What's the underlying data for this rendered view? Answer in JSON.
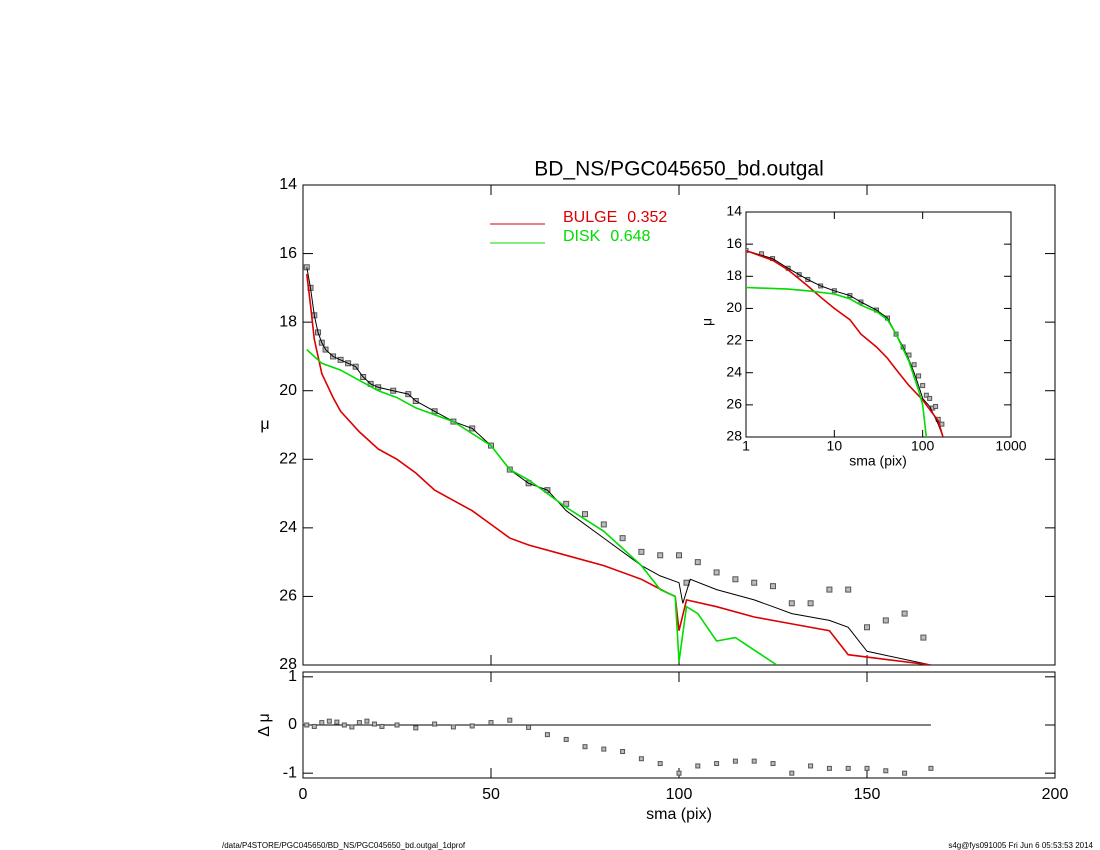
{
  "chart_data": [
    {
      "type": "line",
      "title": "BD_NS/PGC045650_bd.outgal",
      "ylabel": "μ",
      "xlim": [
        0,
        200
      ],
      "xticks": [
        0,
        50,
        100,
        150,
        200
      ],
      "ylim": [
        28,
        14
      ],
      "yticks": [
        14,
        16,
        18,
        20,
        22,
        24,
        26,
        28
      ],
      "series": [
        {
          "style": "markers",
          "color": "#555555",
          "x": [
            1,
            2,
            3,
            4,
            5,
            6,
            8,
            10,
            12,
            14,
            16,
            18,
            20,
            24,
            28,
            30,
            35,
            40,
            45,
            50,
            55,
            60,
            65,
            70,
            75,
            80,
            85,
            90,
            95,
            100,
            102,
            105,
            110,
            115,
            120,
            125,
            130,
            135,
            140,
            145,
            150,
            155,
            160,
            165
          ],
          "values": [
            16.4,
            17.0,
            17.8,
            18.3,
            18.6,
            18.8,
            19.0,
            19.1,
            19.2,
            19.3,
            19.6,
            19.8,
            19.9,
            20.0,
            20.1,
            20.3,
            20.6,
            20.9,
            21.1,
            21.6,
            22.3,
            22.7,
            22.9,
            23.3,
            23.6,
            23.9,
            24.3,
            24.7,
            24.8,
            24.8,
            25.6,
            25.0,
            25.3,
            25.5,
            25.6,
            25.7,
            26.2,
            26.2,
            25.8,
            25.8,
            26.9,
            26.7,
            26.5,
            27.2
          ]
        },
        {
          "style": "line",
          "color": "#000000",
          "x": [
            1,
            2,
            3,
            4,
            5,
            6,
            8,
            10,
            12,
            14,
            16,
            18,
            20,
            24,
            28,
            30,
            35,
            40,
            45,
            50,
            55,
            60,
            65,
            70,
            80,
            90,
            95,
            100,
            101,
            103,
            110,
            120,
            125,
            130,
            135,
            140,
            145,
            150,
            167
          ],
          "values": [
            16.4,
            17.0,
            17.8,
            18.3,
            18.6,
            18.8,
            19.0,
            19.1,
            19.2,
            19.3,
            19.6,
            19.8,
            19.9,
            20.0,
            20.1,
            20.3,
            20.6,
            20.9,
            21.1,
            21.6,
            22.3,
            22.7,
            22.9,
            23.5,
            24.3,
            25.1,
            25.4,
            25.6,
            26.2,
            25.5,
            25.8,
            26.1,
            26.3,
            26.5,
            26.6,
            26.7,
            26.9,
            27.6,
            28.0
          ]
        },
        {
          "style": "line",
          "name": "BULGE",
          "fraction": 0.352,
          "color": "#dd0000",
          "x": [
            1,
            2,
            3,
            5,
            8,
            10,
            15,
            20,
            25,
            30,
            35,
            40,
            45,
            50,
            55,
            60,
            70,
            80,
            90,
            97,
            99,
            100,
            102,
            110,
            120,
            130,
            140,
            145,
            167
          ],
          "values": [
            16.6,
            17.5,
            18.5,
            19.5,
            20.2,
            20.6,
            21.2,
            21.7,
            22.0,
            22.4,
            22.9,
            23.2,
            23.5,
            23.9,
            24.3,
            24.5,
            24.8,
            25.1,
            25.5,
            25.9,
            26.0,
            27.0,
            26.1,
            26.3,
            26.6,
            26.8,
            27.0,
            27.7,
            28.0
          ]
        },
        {
          "style": "line",
          "name": "DISK",
          "fraction": 0.648,
          "color": "#00dd00",
          "x": [
            1,
            5,
            10,
            15,
            20,
            25,
            30,
            40,
            50,
            55,
            60,
            70,
            80,
            85,
            90,
            95,
            99,
            100,
            102,
            105,
            110,
            115,
            126
          ],
          "values": [
            18.8,
            19.2,
            19.4,
            19.7,
            20.0,
            20.2,
            20.5,
            20.9,
            21.6,
            22.3,
            22.6,
            23.4,
            24.1,
            24.6,
            25.1,
            25.8,
            26.0,
            27.9,
            26.3,
            26.5,
            27.3,
            27.2,
            28.0
          ]
        }
      ]
    },
    {
      "type": "scatter",
      "ylabel": "Δ μ",
      "xlabel": "sma (pix)",
      "xlim": [
        0,
        200
      ],
      "xticks": [
        0,
        50,
        100,
        150,
        200
      ],
      "ylim": [
        -1.1,
        1.1
      ],
      "yticks": [
        -1,
        0,
        1
      ],
      "series": [
        {
          "style": "line",
          "color": "#000000",
          "x": [
            0,
            167
          ],
          "values": [
            0,
            0
          ]
        },
        {
          "style": "markers",
          "color": "#555555",
          "x": [
            1,
            3,
            5,
            7,
            9,
            11,
            13,
            15,
            17,
            19,
            21,
            25,
            30,
            35,
            40,
            45,
            50,
            55,
            60,
            65,
            70,
            75,
            80,
            85,
            90,
            95,
            100,
            105,
            110,
            115,
            120,
            125,
            130,
            135,
            140,
            145,
            150,
            155,
            160,
            167
          ],
          "values": [
            0.0,
            -0.03,
            0.05,
            0.08,
            0.06,
            0.0,
            -0.04,
            0.05,
            0.08,
            0.02,
            -0.03,
            0.0,
            -0.06,
            0.02,
            -0.04,
            -0.02,
            0.05,
            0.1,
            -0.05,
            -0.2,
            -0.3,
            -0.45,
            -0.5,
            -0.55,
            -0.7,
            -0.8,
            -1.0,
            -0.85,
            -0.8,
            -0.75,
            -0.75,
            -0.8,
            -1.0,
            -0.85,
            -0.9,
            -0.9,
            -0.9,
            -0.95,
            -1.0,
            -0.9
          ]
        }
      ]
    },
    {
      "type": "line",
      "xlog": true,
      "xlabel": "sma (pix)",
      "ylabel": "μ",
      "xlim": [
        1,
        1000
      ],
      "xticks": [
        1,
        10,
        100,
        1000
      ],
      "ylim": [
        28,
        14
      ],
      "yticks": [
        14,
        16,
        18,
        20,
        22,
        24,
        26,
        28
      ],
      "series": [
        {
          "style": "markers",
          "color": "#555555",
          "x": [
            1,
            1.5,
            2,
            3,
            4,
            5,
            7,
            10,
            15,
            20,
            30,
            40,
            50,
            60,
            70,
            80,
            90,
            100,
            110,
            120,
            130,
            140,
            150,
            165
          ],
          "values": [
            16.4,
            16.6,
            16.9,
            17.5,
            17.9,
            18.2,
            18.6,
            18.9,
            19.2,
            19.6,
            20.1,
            20.6,
            21.6,
            22.4,
            22.9,
            23.5,
            24.2,
            24.8,
            25.4,
            25.6,
            26.2,
            26.1,
            26.9,
            27.2
          ]
        },
        {
          "style": "line",
          "color": "#000000",
          "x": [
            1,
            2,
            3,
            5,
            7,
            10,
            15,
            20,
            30,
            40,
            50,
            60,
            70,
            80,
            90,
            100,
            120,
            150,
            170
          ],
          "values": [
            16.4,
            16.9,
            17.5,
            18.2,
            18.6,
            18.9,
            19.2,
            19.6,
            20.1,
            20.6,
            21.6,
            22.4,
            23.2,
            24.0,
            24.8,
            25.6,
            26.1,
            27.2,
            28.0
          ]
        },
        {
          "style": "line",
          "color": "#dd0000",
          "x": [
            1,
            2,
            3,
            5,
            7,
            10,
            15,
            20,
            30,
            40,
            50,
            70,
            100,
            150,
            170
          ],
          "values": [
            16.4,
            17.0,
            17.6,
            18.6,
            19.3,
            20.0,
            20.7,
            21.6,
            22.4,
            23.1,
            23.8,
            24.8,
            25.7,
            27.0,
            28.0
          ]
        },
        {
          "style": "line",
          "color": "#00dd00",
          "x": [
            1,
            3,
            5,
            10,
            15,
            20,
            30,
            40,
            50,
            70,
            90,
            100,
            110
          ],
          "values": [
            18.7,
            18.8,
            18.9,
            19.1,
            19.4,
            19.8,
            20.2,
            20.7,
            21.6,
            23.3,
            25.1,
            26.0,
            28.0
          ]
        }
      ]
    }
  ],
  "footer": {
    "left": "/data/P4STORE/PGC045650/BD_NS/PGC045650_bd.outgal_1dprof",
    "right": "s4g@fys091005  Fri Jun  6 05:53:53 2014"
  }
}
